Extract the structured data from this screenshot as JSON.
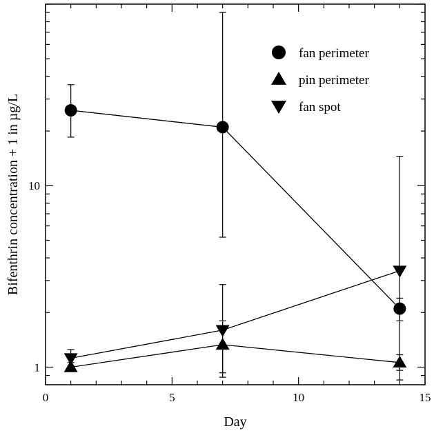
{
  "chart_data": {
    "type": "scatter",
    "xlabel": "Day",
    "ylabel": "Bifenthrin concentration + 1 in µg/L",
    "xlim": [
      0,
      15
    ],
    "ylim": [
      0.8,
      100
    ],
    "yscale": "log",
    "x_ticks": [
      0,
      5,
      10,
      15
    ],
    "y_tick_labels": [
      {
        "value": 1,
        "label": "1"
      },
      {
        "value": 10,
        "label": "10"
      }
    ],
    "legend_position": "top-right",
    "grid": false,
    "series": [
      {
        "name": "fan perimeter",
        "marker": "circle",
        "points": [
          {
            "x": 1,
            "y": 26,
            "err_low": 18.5,
            "err_high": 36
          },
          {
            "x": 7,
            "y": 21,
            "err_low": 5.2,
            "err_high": 90
          },
          {
            "x": 14,
            "y": 2.1,
            "err_low": 1.8,
            "err_high": 2.4
          }
        ]
      },
      {
        "name": "pin perimeter",
        "marker": "triangle-up",
        "points": [
          {
            "x": 1,
            "y": 1.0,
            "err_low": 0.95,
            "err_high": 1.06
          },
          {
            "x": 7,
            "y": 1.33,
            "err_low": 0.88,
            "err_high": 1.8
          },
          {
            "x": 14,
            "y": 1.06,
            "err_low": 0.96,
            "err_high": 1.17
          }
        ]
      },
      {
        "name": "fan spot",
        "marker": "triangle-down",
        "points": [
          {
            "x": 1,
            "y": 1.12,
            "err_low": 1.02,
            "err_high": 1.25
          },
          {
            "x": 7,
            "y": 1.6,
            "err_low": 0.93,
            "err_high": 2.85
          },
          {
            "x": 14,
            "y": 3.4,
            "err_low": 0.85,
            "err_high": 14.5
          }
        ]
      }
    ]
  }
}
